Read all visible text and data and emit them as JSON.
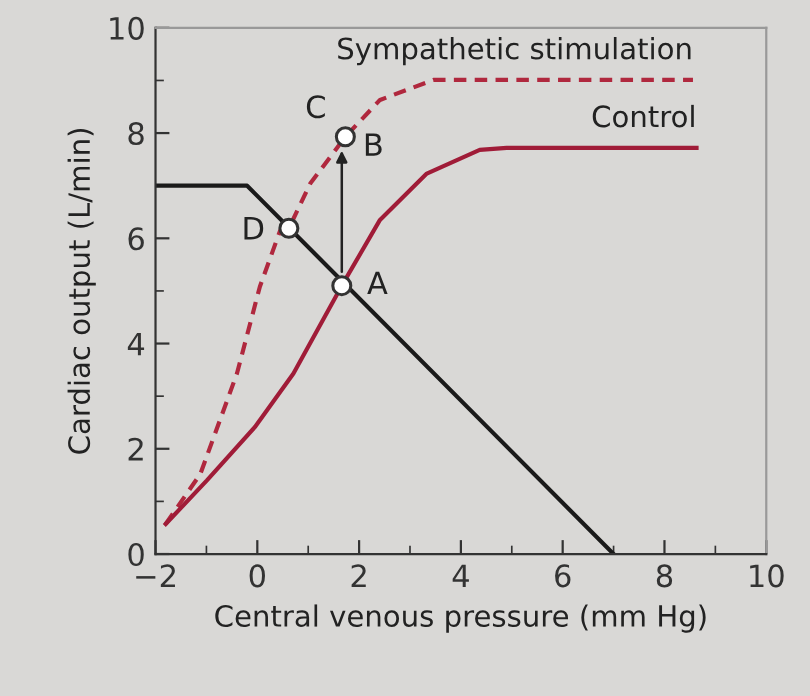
{
  "chart_data": {
    "type": "line",
    "xlabel": "Central venous pressure (mm Hg)",
    "ylabel": "Cardiac output (L/min)",
    "xlim": [
      -2,
      10
    ],
    "ylim": [
      0,
      10
    ],
    "xticks": [
      -2,
      0,
      2,
      4,
      6,
      8,
      10
    ],
    "yticks": [
      0,
      2,
      4,
      6,
      8,
      10
    ],
    "grid": false,
    "legend": false,
    "marker": "none",
    "series": [
      {
        "name": "Sympathetic stimulation",
        "color": "#b0283e",
        "line_style": "dashed",
        "x": [
          -1.8,
          -1.12,
          -0.4,
          0.05,
          0.45,
          0.62,
          1.04,
          1.73,
          2.41,
          3.46,
          8.56
        ],
        "values": [
          0.57,
          1.52,
          3.43,
          5.08,
          6.15,
          6.19,
          7.04,
          7.93,
          8.63,
          9.01,
          9.01
        ]
      },
      {
        "name": "Control",
        "color": "#a01c38",
        "line_style": "solid",
        "x": [
          -1.8,
          -0.99,
          -0.05,
          0.71,
          1.66,
          2.41,
          3.33,
          4.37,
          4.9,
          8.63
        ],
        "values": [
          0.57,
          1.4,
          2.41,
          3.43,
          5.1,
          6.35,
          7.23,
          7.68,
          7.72,
          7.72
        ]
      },
      {
        "color": "#1a1a1a",
        "line_style": "solid",
        "x": [
          -2,
          -0.2,
          7
        ],
        "values": [
          7,
          7,
          0
        ]
      },
      {
        "type": "scatter",
        "marker": "circle",
        "color": "#ffffff",
        "x": [
          0.62,
          1.66,
          1.73
        ],
        "values": [
          6.19,
          5.1,
          7.93
        ]
      }
    ],
    "annotations": [
      {
        "text": "A",
        "x": 1.66,
        "y": 5.1
      },
      {
        "text": "B",
        "x": 1.73,
        "y": 7.93
      },
      {
        "text": "C",
        "x": 1.4,
        "y": 7.5
      },
      {
        "text": "D",
        "x": 0.62,
        "y": 6.19
      }
    ]
  }
}
